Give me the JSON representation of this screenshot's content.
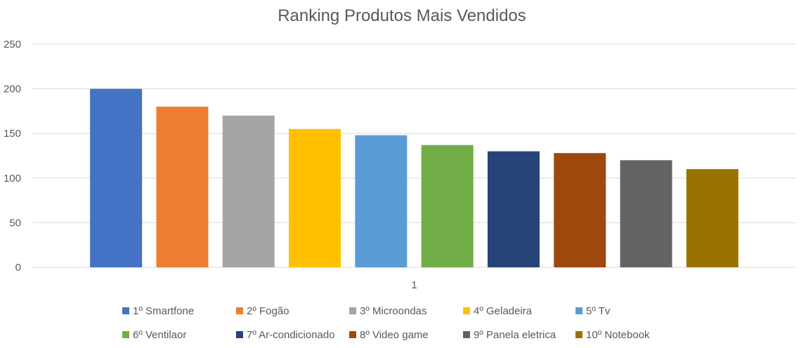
{
  "chart_data": {
    "type": "bar",
    "title": "Ranking Produtos Mais Vendidos",
    "categories": [
      "1"
    ],
    "ylim": [
      0,
      250
    ],
    "yticks": [
      0,
      50,
      100,
      150,
      200,
      250
    ],
    "grid": true,
    "legend_position": "bottom",
    "series": [
      {
        "name": "1º Smartfone",
        "values": [
          200
        ],
        "color": "#4472C4"
      },
      {
        "name": "2º Fogão",
        "values": [
          180
        ],
        "color": "#ED7D31"
      },
      {
        "name": "3º Microondas",
        "values": [
          170
        ],
        "color": "#A5A5A5"
      },
      {
        "name": "4º Geladeira",
        "values": [
          155
        ],
        "color": "#FFC000"
      },
      {
        "name": "5º Tv",
        "values": [
          148
        ],
        "color": "#5B9BD5"
      },
      {
        "name": "6º Ventilaor",
        "values": [
          137
        ],
        "color": "#70AD47"
      },
      {
        "name": "7º Ar-condicionado",
        "values": [
          130
        ],
        "color": "#264478"
      },
      {
        "name": "8º Video game",
        "values": [
          128
        ],
        "color": "#9E480E"
      },
      {
        "name": "9º Panela eletrica",
        "values": [
          120
        ],
        "color": "#636363"
      },
      {
        "name": "10º Notebook",
        "values": [
          110
        ],
        "color": "#997300"
      }
    ]
  }
}
